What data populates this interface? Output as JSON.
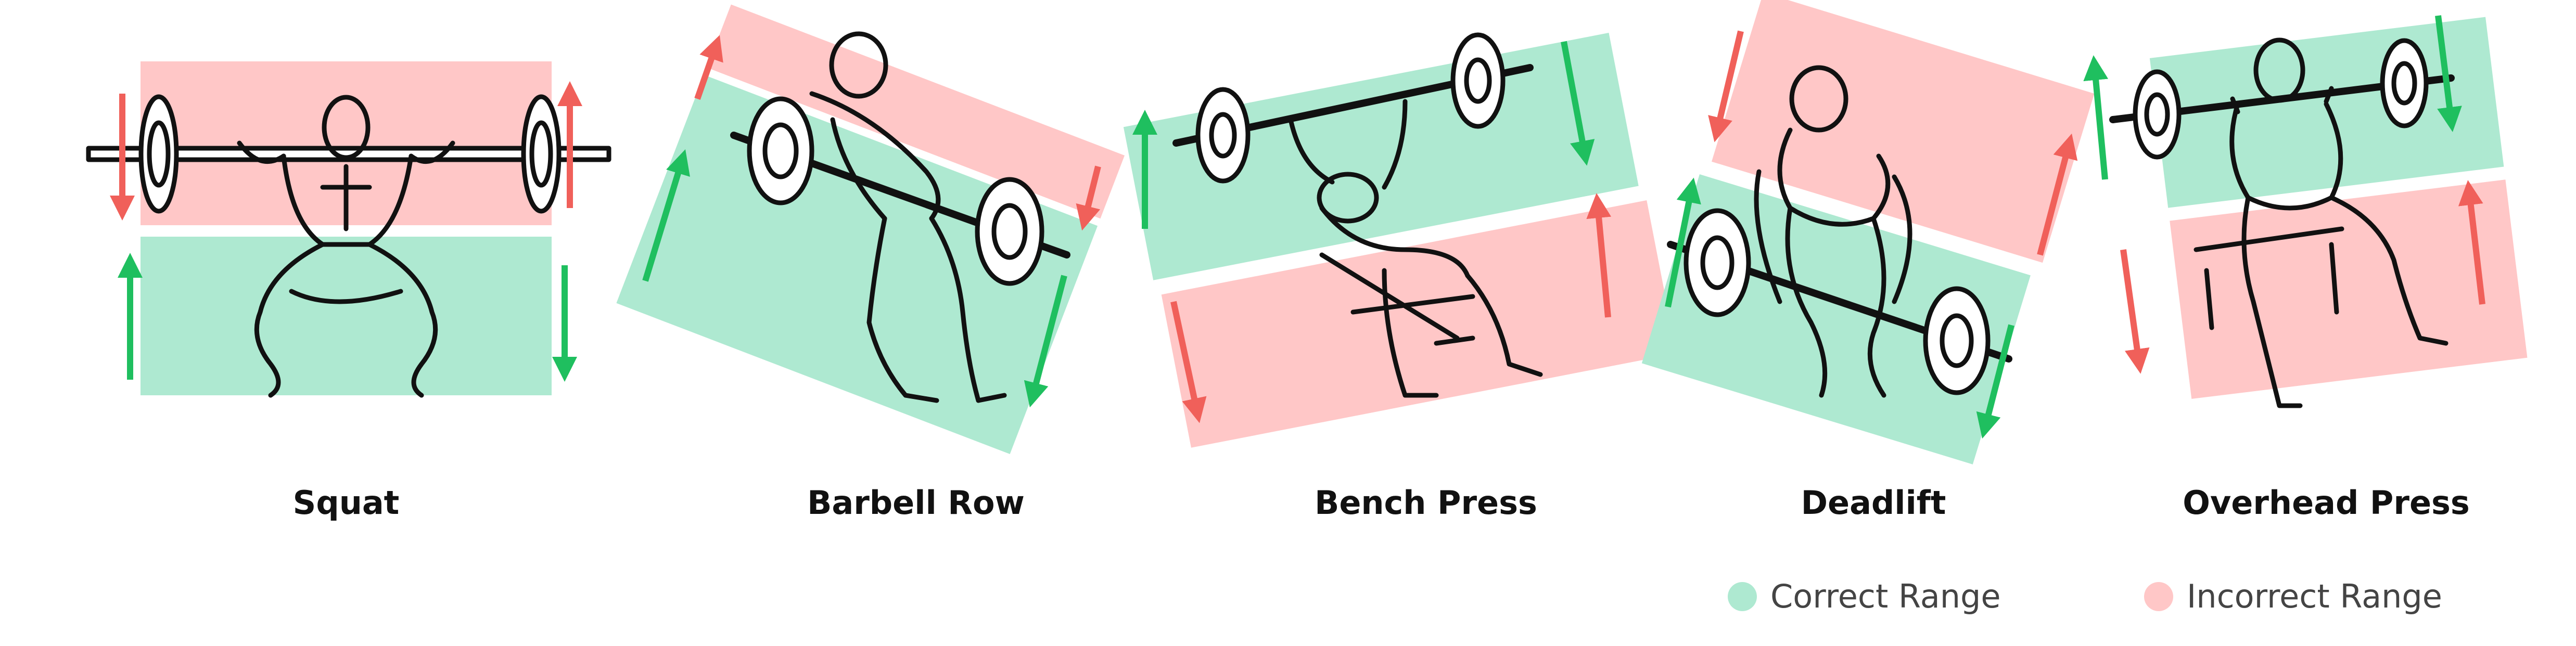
{
  "colors": {
    "correct_fill": "#aee9d1",
    "incorrect_fill": "#ffc7c7",
    "correct_arrow": "#1fbf5f",
    "incorrect_arrow": "#f0605a",
    "line": "#111111"
  },
  "exercises": [
    {
      "name": "Squat"
    },
    {
      "name": "Barbell Row"
    },
    {
      "name": "Bench Press"
    },
    {
      "name": "Deadlift"
    },
    {
      "name": "Overhead Press"
    }
  ],
  "legend": {
    "correct": {
      "label": "Correct Range",
      "color": "#aee9d1"
    },
    "incorrect": {
      "label": "Incorrect Range",
      "color": "#ffc7c7"
    }
  }
}
